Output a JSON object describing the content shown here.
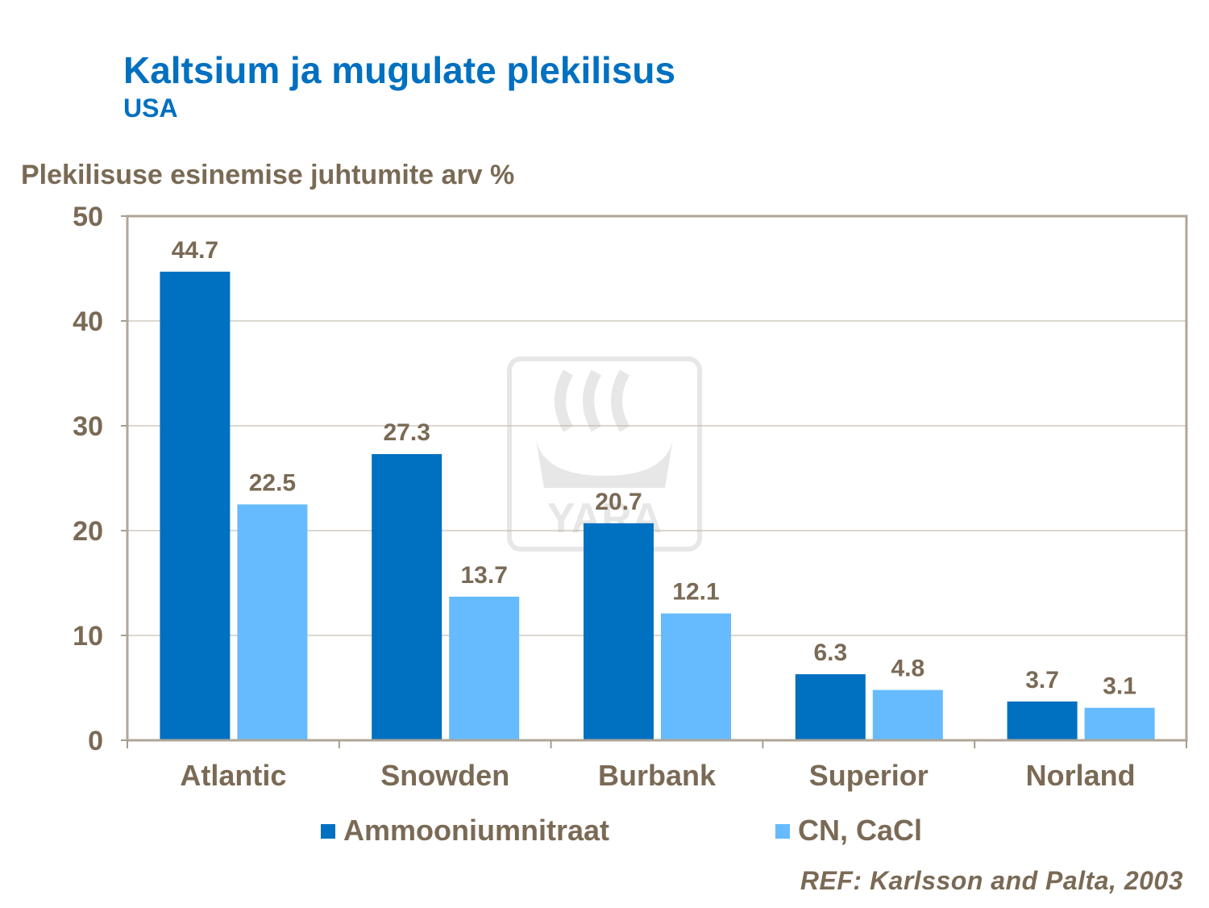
{
  "title": "Kaltsium ja mugulate plekilisus",
  "subtitle": "USA",
  "reference": "REF: Karlsson and Palta, 2003",
  "watermark": "YARA",
  "chart_data": {
    "type": "bar",
    "ylabel": "Plekilisuse esinemise juhtumite arv %",
    "ylim": [
      0,
      50
    ],
    "yticks": [
      0,
      10,
      20,
      30,
      40,
      50
    ],
    "grid": true,
    "legend_position": "bottom",
    "categories": [
      "Atlantic",
      "Snowden",
      "Burbank",
      "Superior",
      "Norland"
    ],
    "series": [
      {
        "name": "Ammooniumnitraat",
        "color": "#0070C0",
        "values": [
          44.7,
          27.3,
          20.7,
          6.3,
          3.7
        ]
      },
      {
        "name": "CN, CaCl",
        "color": "#66BBFF",
        "values": [
          22.5,
          13.7,
          12.1,
          4.8,
          3.1
        ]
      }
    ]
  }
}
